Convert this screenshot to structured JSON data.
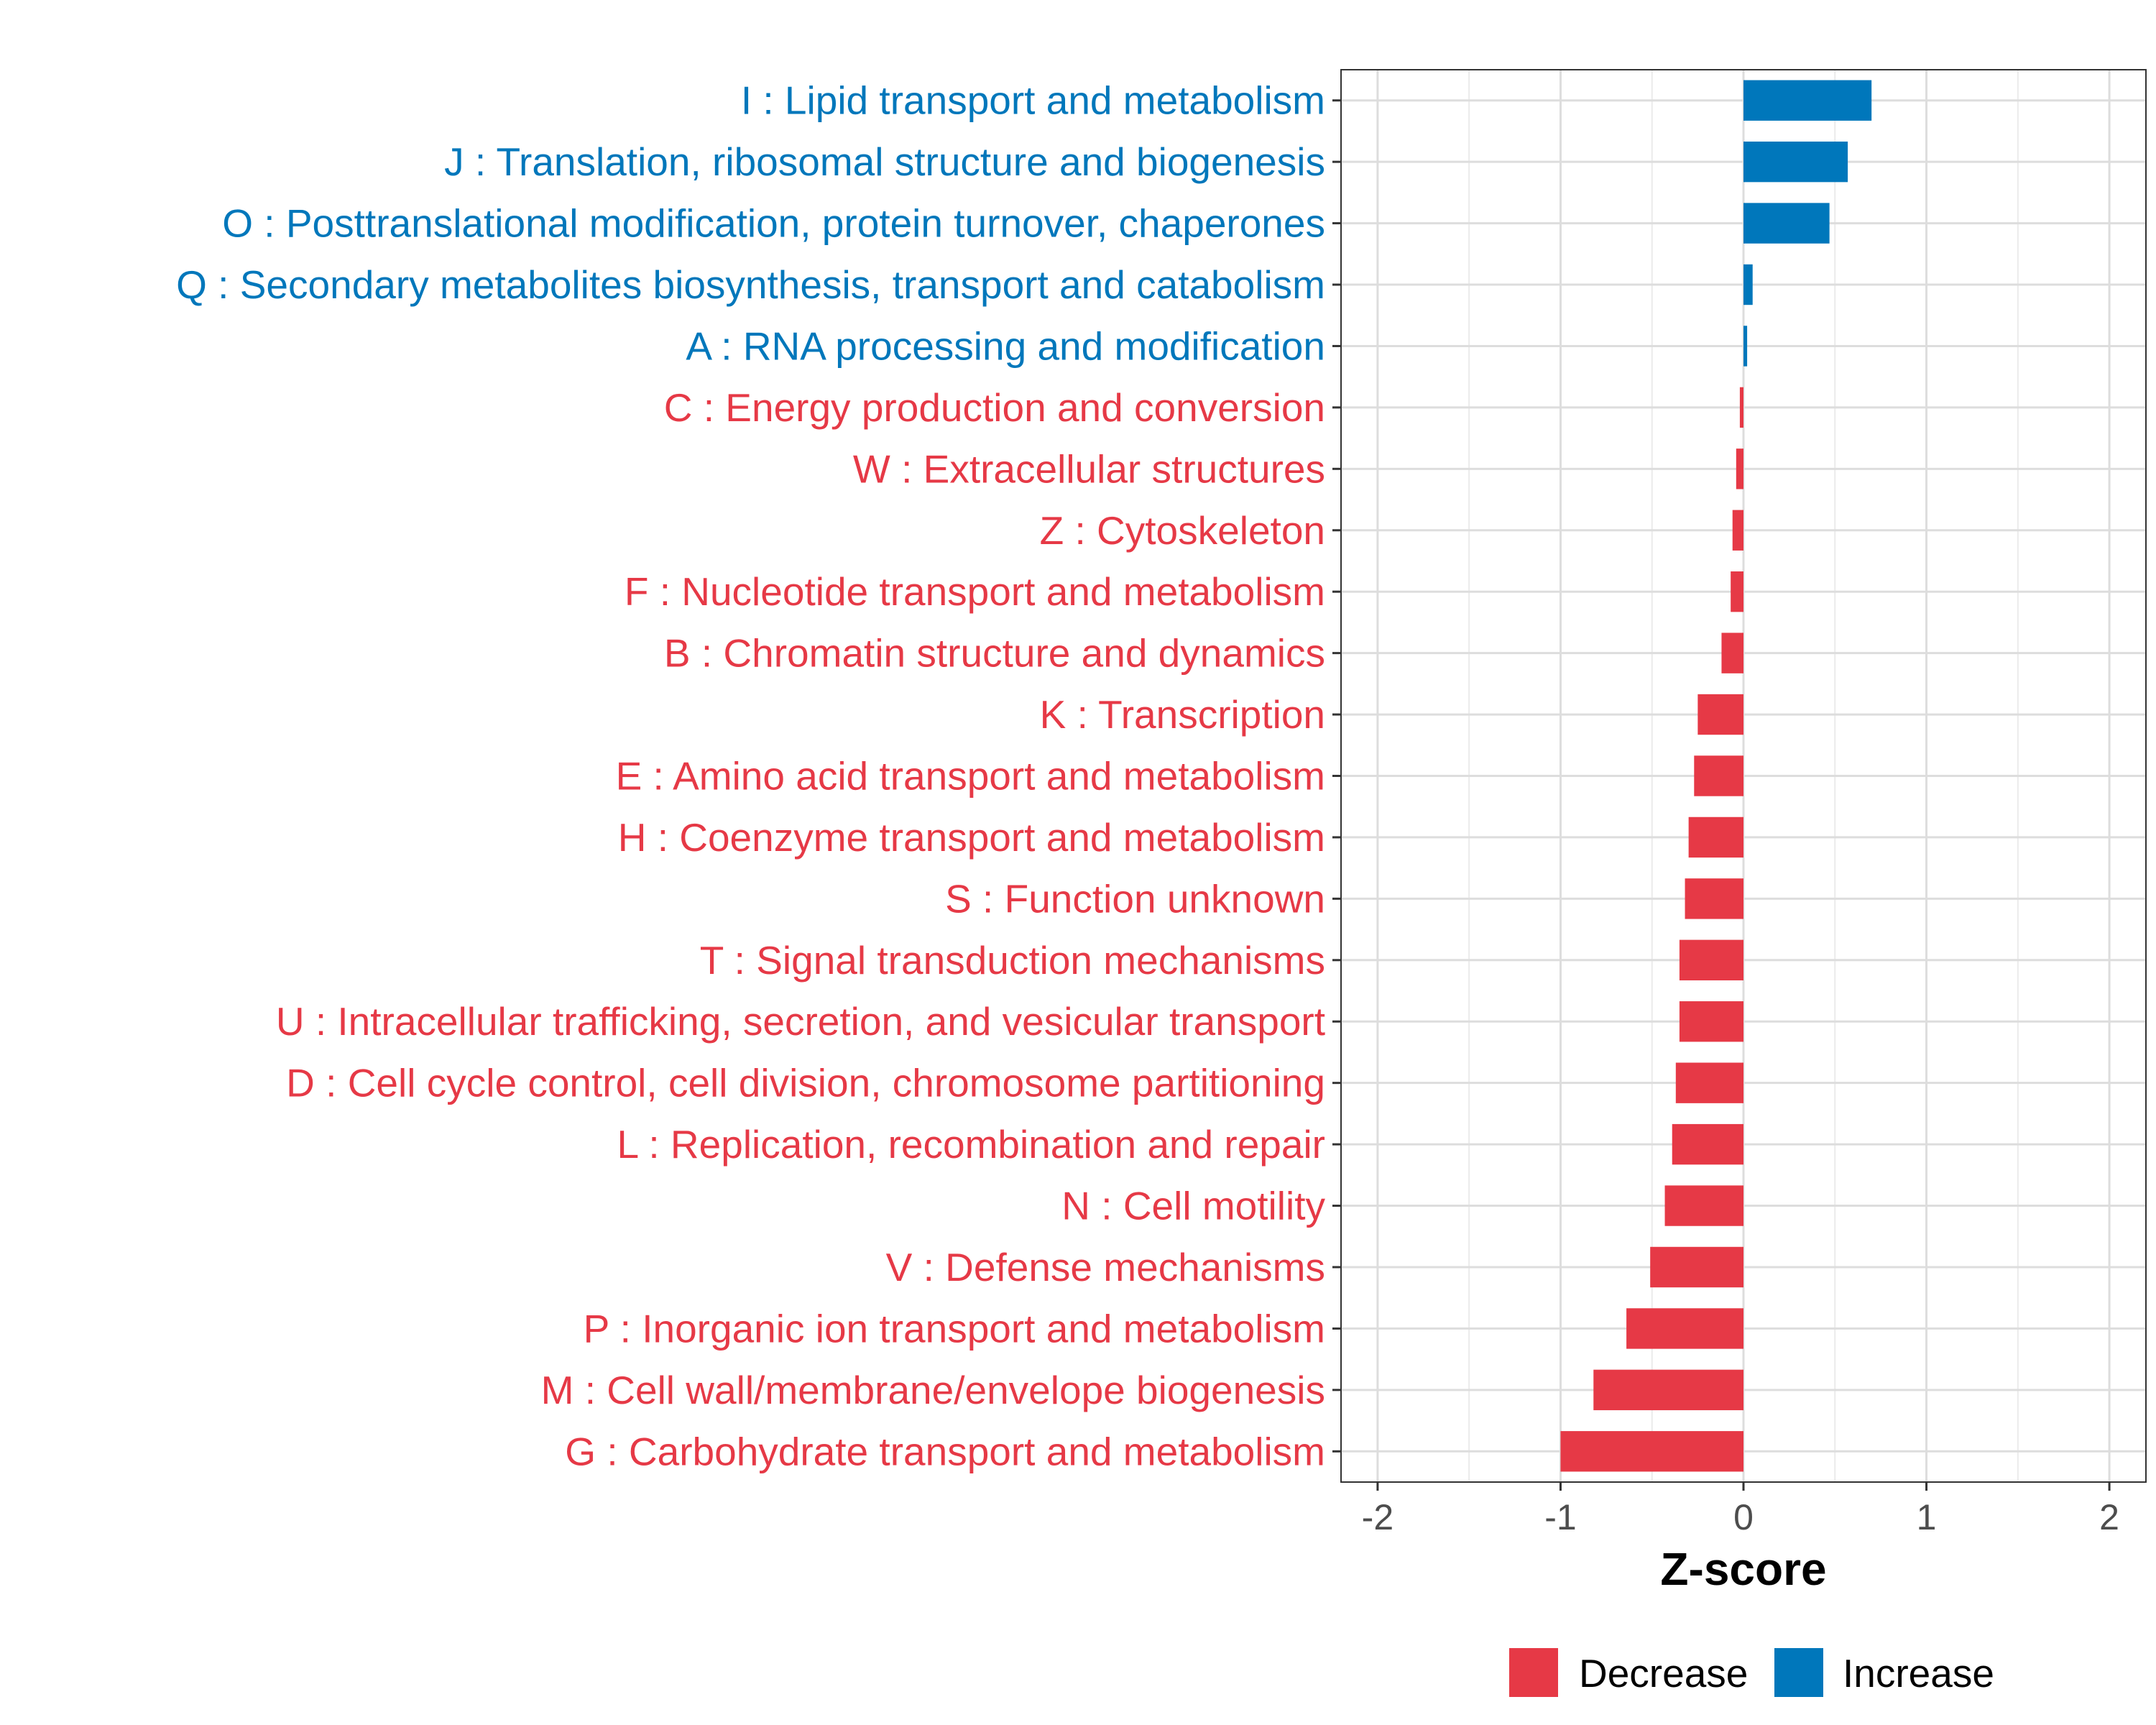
{
  "chart_data": {
    "type": "bar",
    "orientation": "horizontal",
    "title": "",
    "xlabel": "Z-score",
    "ylabel": "",
    "xlim": [
      -2.2,
      2.2
    ],
    "xticks": [
      -2,
      -1,
      0,
      1,
      2
    ],
    "grid": true,
    "legend_position": "bottom",
    "colors": {
      "Decrease": "#e63946",
      "Increase": "#0077bb"
    },
    "legend": [
      {
        "label": "Decrease",
        "color": "#e63946"
      },
      {
        "label": "Increase",
        "color": "#0077bb"
      }
    ],
    "categories": [
      "I : Lipid transport and metabolism",
      "J : Translation, ribosomal structure and biogenesis",
      "O : Posttranslational modification, protein turnover, chaperones",
      "Q : Secondary metabolites biosynthesis, transport and catabolism",
      "A : RNA processing and modification",
      "C : Energy production and conversion",
      "W : Extracellular structures",
      "Z : Cytoskeleton",
      "F : Nucleotide transport and metabolism",
      "B : Chromatin structure and dynamics",
      "K : Transcription",
      "E : Amino acid transport and metabolism",
      "H : Coenzyme transport and metabolism",
      "S : Function unknown",
      "T : Signal transduction mechanisms",
      "U : Intracellular trafficking, secretion, and vesicular transport",
      "D : Cell cycle control, cell division, chromosome partitioning",
      "L : Replication, recombination and repair",
      "N : Cell motility",
      "V : Defense mechanisms",
      "P : Inorganic ion transport and metabolism",
      "M : Cell wall/membrane/envelope biogenesis",
      "G : Carbohydrate transport and metabolism"
    ],
    "values": [
      0.7,
      0.57,
      0.47,
      0.05,
      0.02,
      -0.02,
      -0.04,
      -0.06,
      -0.07,
      -0.12,
      -0.25,
      -0.27,
      -0.3,
      -0.32,
      -0.35,
      -0.35,
      -0.37,
      -0.39,
      -0.43,
      -0.51,
      -0.64,
      -0.82,
      -1.0
    ]
  }
}
